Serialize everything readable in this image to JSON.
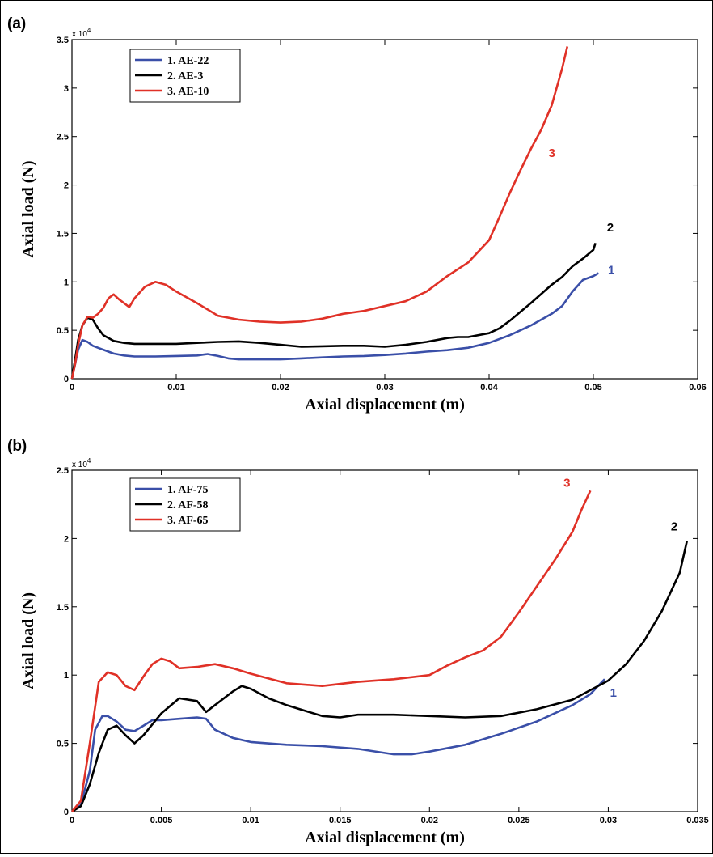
{
  "chart_data": [
    {
      "type": "line",
      "panel_label": "(a)",
      "xlabel": "Axial displacement (m)",
      "ylabel": "Axial load (N)",
      "y_exponent_label": "x 10",
      "y_exponent_power": "4",
      "xlim": [
        0,
        0.06
      ],
      "ylim": [
        0,
        35000
      ],
      "x_ticks": [
        0,
        0.01,
        0.02,
        0.03,
        0.04,
        0.05,
        0.06
      ],
      "x_tick_labels": [
        "0",
        "0.01",
        "0.02",
        "0.03",
        "0.04",
        "0.05",
        "0.06"
      ],
      "y_ticks": [
        0,
        5000,
        10000,
        15000,
        20000,
        25000,
        30000,
        35000
      ],
      "y_tick_labels": [
        "0",
        "0.5",
        "1",
        "1.5",
        "2",
        "2.5",
        "3",
        "3.5"
      ],
      "grid": false,
      "legend_position": "top-left",
      "series": [
        {
          "name": "1. AE-22",
          "color": "#3a4fa8",
          "curve_label": "1",
          "x": [
            0,
            0.0003,
            0.0006,
            0.001,
            0.0015,
            0.002,
            0.003,
            0.004,
            0.005,
            0.006,
            0.008,
            0.01,
            0.012,
            0.013,
            0.014,
            0.015,
            0.016,
            0.018,
            0.02,
            0.022,
            0.024,
            0.026,
            0.028,
            0.03,
            0.032,
            0.034,
            0.036,
            0.038,
            0.04,
            0.042,
            0.044,
            0.046,
            0.047,
            0.048,
            0.049,
            0.05,
            0.0505
          ],
          "y": [
            0,
            1500,
            3000,
            4000,
            3800,
            3400,
            3000,
            2600,
            2400,
            2300,
            2300,
            2350,
            2400,
            2550,
            2350,
            2100,
            2000,
            2000,
            2000,
            2100,
            2200,
            2300,
            2350,
            2450,
            2600,
            2800,
            2950,
            3200,
            3700,
            4500,
            5500,
            6700,
            7500,
            9000,
            10200,
            10600,
            10900
          ]
        },
        {
          "name": "2. AE-3",
          "color": "#000000",
          "curve_label": "2",
          "x": [
            0,
            0.0003,
            0.0006,
            0.001,
            0.0015,
            0.002,
            0.0025,
            0.003,
            0.004,
            0.005,
            0.006,
            0.008,
            0.01,
            0.012,
            0.014,
            0.016,
            0.018,
            0.02,
            0.022,
            0.024,
            0.026,
            0.028,
            0.03,
            0.032,
            0.034,
            0.036,
            0.037,
            0.038,
            0.04,
            0.041,
            0.042,
            0.044,
            0.046,
            0.047,
            0.048,
            0.049,
            0.05,
            0.0502
          ],
          "y": [
            0,
            2000,
            4000,
            5500,
            6300,
            6100,
            5200,
            4500,
            3900,
            3700,
            3600,
            3600,
            3600,
            3700,
            3800,
            3850,
            3700,
            3500,
            3300,
            3350,
            3400,
            3400,
            3300,
            3500,
            3800,
            4200,
            4300,
            4300,
            4700,
            5200,
            6000,
            7800,
            9700,
            10500,
            11600,
            12400,
            13300,
            14000
          ]
        },
        {
          "name": "3. AE-10",
          "color": "#e03127",
          "curve_label": "3",
          "x": [
            0,
            0.0003,
            0.0006,
            0.001,
            0.0015,
            0.002,
            0.0025,
            0.003,
            0.0035,
            0.004,
            0.0045,
            0.005,
            0.0055,
            0.006,
            0.007,
            0.008,
            0.009,
            0.01,
            0.012,
            0.014,
            0.016,
            0.018,
            0.02,
            0.022,
            0.024,
            0.026,
            0.028,
            0.03,
            0.032,
            0.034,
            0.036,
            0.038,
            0.04,
            0.041,
            0.042,
            0.043,
            0.044,
            0.045,
            0.046,
            0.047,
            0.0475
          ],
          "y": [
            0,
            1500,
            3500,
            5500,
            6400,
            6300,
            6700,
            7300,
            8300,
            8700,
            8200,
            7800,
            7400,
            8300,
            9500,
            10000,
            9700,
            9000,
            7800,
            6500,
            6100,
            5900,
            5800,
            5900,
            6200,
            6700,
            7000,
            7500,
            8000,
            9000,
            10600,
            12000,
            14300,
            16700,
            19200,
            21500,
            23700,
            25700,
            28200,
            32000,
            34300
          ]
        }
      ]
    },
    {
      "type": "line",
      "panel_label": "(b)",
      "xlabel": "Axial displacement (m)",
      "ylabel": "Axial load (N)",
      "y_exponent_label": "x 10",
      "y_exponent_power": "4",
      "xlim": [
        0,
        0.035
      ],
      "ylim": [
        0,
        25000
      ],
      "x_ticks": [
        0,
        0.005,
        0.01,
        0.015,
        0.02,
        0.025,
        0.03,
        0.035
      ],
      "x_tick_labels": [
        "0",
        "0.005",
        "0.01",
        "0.015",
        "0.02",
        "0.025",
        "0.03",
        "0.035"
      ],
      "y_ticks": [
        0,
        5000,
        10000,
        15000,
        20000,
        25000
      ],
      "y_tick_labels": [
        "0",
        "0.5",
        "1",
        "1.5",
        "2",
        "2.5"
      ],
      "grid": false,
      "legend_position": "top-left",
      "series": [
        {
          "name": "1. AF-75",
          "color": "#3a4fa8",
          "curve_label": "1",
          "x": [
            0,
            0.0005,
            0.001,
            0.0013,
            0.0017,
            0.002,
            0.0025,
            0.003,
            0.0035,
            0.004,
            0.0045,
            0.005,
            0.006,
            0.007,
            0.0075,
            0.008,
            0.009,
            0.01,
            0.012,
            0.014,
            0.016,
            0.018,
            0.019,
            0.02,
            0.022,
            0.024,
            0.026,
            0.028,
            0.029,
            0.0295,
            0.0298
          ],
          "y": [
            0,
            500,
            3000,
            6000,
            7000,
            7000,
            6600,
            6000,
            5900,
            6300,
            6700,
            6700,
            6800,
            6900,
            6800,
            6000,
            5400,
            5100,
            4900,
            4800,
            4600,
            4200,
            4200,
            4400,
            4900,
            5700,
            6600,
            7800,
            8600,
            9300,
            9700
          ]
        },
        {
          "name": "2. AF-58",
          "color": "#000000",
          "curve_label": "2",
          "x": [
            0,
            0.0005,
            0.001,
            0.0015,
            0.002,
            0.0025,
            0.003,
            0.0035,
            0.004,
            0.005,
            0.006,
            0.007,
            0.0075,
            0.008,
            0.009,
            0.0095,
            0.01,
            0.011,
            0.012,
            0.014,
            0.015,
            0.016,
            0.018,
            0.02,
            0.022,
            0.024,
            0.026,
            0.028,
            0.03,
            0.031,
            0.032,
            0.033,
            0.034,
            0.0344
          ],
          "y": [
            0,
            400,
            2000,
            4300,
            6000,
            6300,
            5600,
            5000,
            5600,
            7200,
            8300,
            8100,
            7300,
            7800,
            8800,
            9200,
            9000,
            8300,
            7800,
            7000,
            6900,
            7100,
            7100,
            7000,
            6900,
            7000,
            7500,
            8200,
            9600,
            10800,
            12500,
            14700,
            17500,
            19800
          ]
        },
        {
          "name": "3. AF-65",
          "color": "#e03127",
          "curve_label": "3",
          "x": [
            0,
            0.0005,
            0.001,
            0.0015,
            0.002,
            0.0025,
            0.003,
            0.0035,
            0.004,
            0.0045,
            0.005,
            0.0055,
            0.006,
            0.007,
            0.008,
            0.009,
            0.01,
            0.012,
            0.014,
            0.016,
            0.018,
            0.02,
            0.021,
            0.022,
            0.023,
            0.024,
            0.025,
            0.026,
            0.027,
            0.028,
            0.0285,
            0.029
          ],
          "y": [
            0,
            800,
            5000,
            9500,
            10200,
            10000,
            9200,
            8900,
            9900,
            10800,
            11200,
            11000,
            10500,
            10600,
            10800,
            10500,
            10100,
            9400,
            9200,
            9500,
            9700,
            10000,
            10700,
            11300,
            11800,
            12800,
            14600,
            16500,
            18400,
            20500,
            22100,
            23500
          ]
        }
      ]
    }
  ]
}
